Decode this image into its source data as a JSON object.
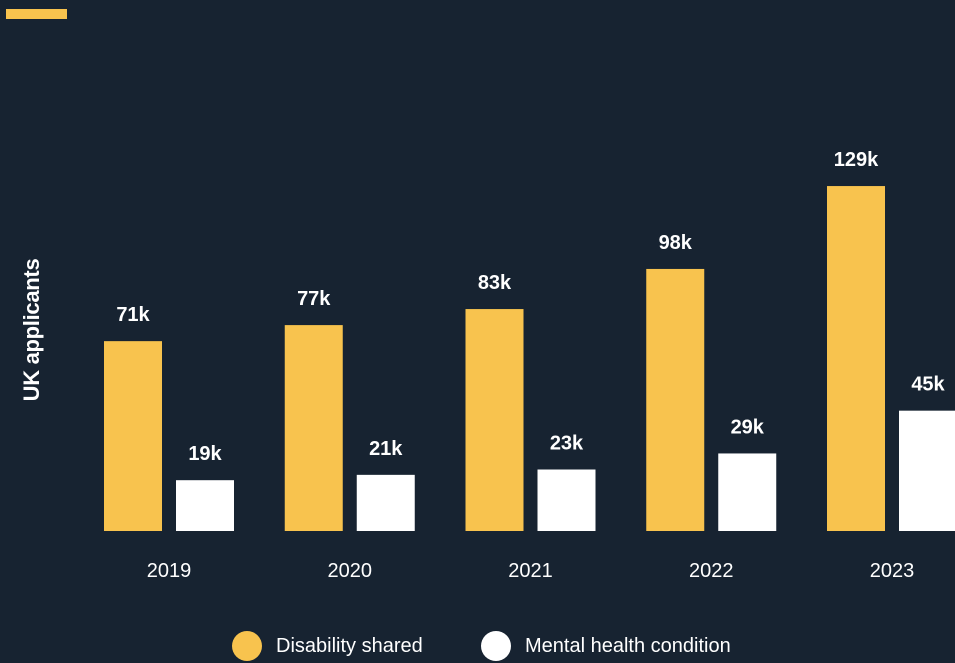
{
  "chart_data": {
    "type": "bar",
    "categories": [
      "2019",
      "2020",
      "2021",
      "2022",
      "2023"
    ],
    "series": [
      {
        "name": "Disability shared",
        "values": [
          71,
          77,
          83,
          98,
          129
        ],
        "labels": [
          "71k",
          "77k",
          "83k",
          "98k",
          "129k"
        ],
        "color": "#F8C34E"
      },
      {
        "name": "Mental health condition",
        "values": [
          19,
          21,
          23,
          29,
          45
        ],
        "labels": [
          "19k",
          "21k",
          "23k",
          "29k",
          "45k"
        ],
        "color": "#FFFFFF"
      }
    ],
    "ylabel": "UK applicants",
    "unit": "thousands",
    "ylim": [
      0,
      129
    ],
    "grid": false,
    "legend_position": "bottom"
  },
  "colors": {
    "background": "#172331",
    "accent": "#F8C34E",
    "text": "#FFFFFF"
  }
}
